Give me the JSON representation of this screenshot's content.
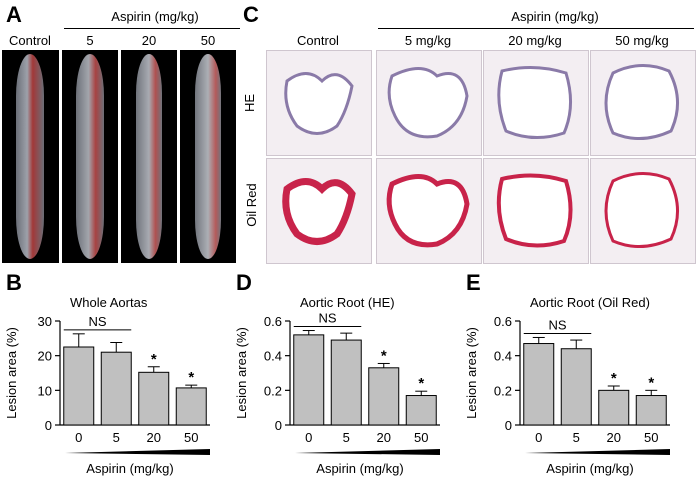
{
  "panels": {
    "A": {
      "letter": "A",
      "header": "Aspirin (mg/kg)",
      "columns": [
        "Control",
        "5",
        "20",
        "50"
      ]
    },
    "C": {
      "letter": "C",
      "header": "Aspirin (mg/kg)",
      "columns": [
        "Control",
        "5 mg/kg",
        "20 mg/kg",
        "50 mg/kg"
      ],
      "rows": [
        "HE",
        "Oil Red"
      ]
    },
    "B": {
      "letter": "B"
    },
    "D": {
      "letter": "D"
    },
    "E": {
      "letter": "E"
    }
  },
  "chart_data": [
    {
      "type": "bar",
      "title": "Whole Aortas",
      "ylabel": "Lesion area (%)",
      "xlabel": "Aspirin (mg/kg)",
      "categories": [
        "0",
        "5",
        "20",
        "50"
      ],
      "values": [
        22.5,
        21.0,
        15.2,
        10.7
      ],
      "errors": [
        3.8,
        2.8,
        1.6,
        0.8
      ],
      "ylim": [
        0,
        30
      ],
      "yticks": [
        "0",
        "10",
        "20",
        "30"
      ],
      "annotations": {
        "ns": "NS",
        "sig": [
          "",
          "",
          "*",
          "*"
        ]
      },
      "bar_color": "#c0c0c0"
    },
    {
      "type": "bar",
      "title": "Aortic Root (HE)",
      "ylabel": "Lesion area (%)",
      "xlabel": "Aspirin (mg/kg)",
      "categories": [
        "0",
        "5",
        "20",
        "50"
      ],
      "values": [
        0.52,
        0.49,
        0.33,
        0.17
      ],
      "errors": [
        0.025,
        0.04,
        0.025,
        0.025
      ],
      "ylim": [
        0,
        0.6
      ],
      "yticks": [
        "0",
        "0.2",
        "0.4",
        "0.6"
      ],
      "annotations": {
        "ns": "NS",
        "sig": [
          "",
          "",
          "*",
          "*"
        ]
      },
      "bar_color": "#c0c0c0"
    },
    {
      "type": "bar",
      "title": "Aortic Root (Oil Red)",
      "ylabel": "Lesion area (%)",
      "xlabel": "Aspirin (mg/kg)",
      "categories": [
        "0",
        "5",
        "20",
        "50"
      ],
      "values": [
        0.47,
        0.44,
        0.2,
        0.17
      ],
      "errors": [
        0.035,
        0.05,
        0.025,
        0.03
      ],
      "ylim": [
        0,
        0.6
      ],
      "yticks": [
        "0",
        "0.2",
        "0.4",
        "0.6"
      ],
      "annotations": {
        "ns": "NS",
        "sig": [
          "",
          "",
          "*",
          "*"
        ]
      },
      "bar_color": "#c0c0c0"
    }
  ]
}
